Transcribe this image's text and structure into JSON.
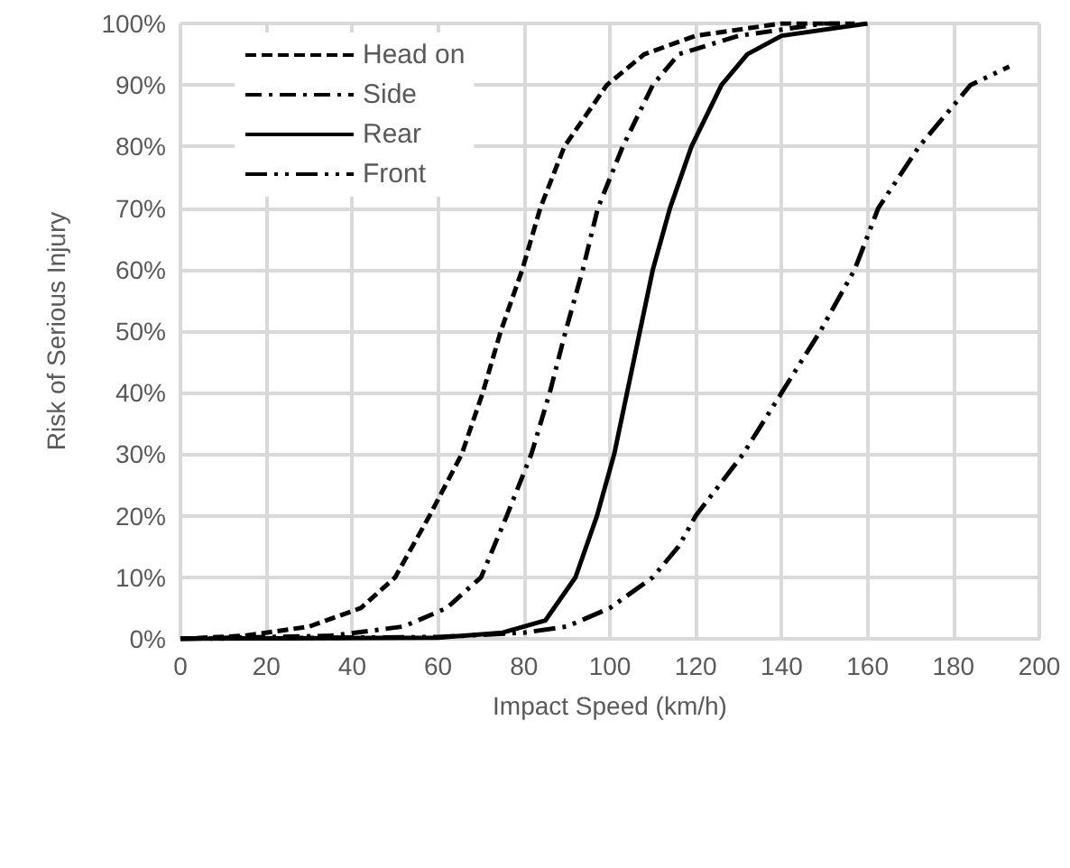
{
  "chart_data": {
    "type": "line",
    "xlabel": "Impact Speed (km/h)",
    "ylabel": "Risk of Serious Injury",
    "xlim": [
      0,
      200
    ],
    "xticks": [
      0,
      20,
      40,
      60,
      80,
      100,
      120,
      140,
      160,
      180,
      200
    ],
    "ylim": [
      0,
      100
    ],
    "yticks": [
      {
        "value": 0,
        "label": "0%"
      },
      {
        "value": 10,
        "label": "10%"
      },
      {
        "value": 20,
        "label": "20%"
      },
      {
        "value": 30,
        "label": "30%"
      },
      {
        "value": 40,
        "label": "40%"
      },
      {
        "value": 50,
        "label": "50%"
      },
      {
        "value": 60,
        "label": "60%"
      },
      {
        "value": 70,
        "label": "70%"
      },
      {
        "value": 80,
        "label": "80%"
      },
      {
        "value": 90,
        "label": "90%"
      },
      {
        "value": 100,
        "label": "100%"
      }
    ],
    "grid": true,
    "legend": "top left",
    "marker": "none",
    "series": [
      {
        "name": "Head on",
        "color": "#000000",
        "line_style": "dashed",
        "x": [
          0,
          15,
          30,
          42,
          50,
          58,
          65.5,
          70.4,
          74.6,
          79.6,
          83.8,
          89.4,
          99.3,
          108,
          120,
          140,
          157
        ],
        "values": [
          0,
          0.5,
          2,
          5,
          10,
          20,
          30,
          40,
          50,
          60,
          70,
          80,
          90,
          95,
          98,
          100,
          100
        ]
      },
      {
        "name": "Side",
        "color": "#000000",
        "line_style": "dashdot",
        "x": [
          0,
          35,
          52,
          62,
          70,
          76,
          81.7,
          86,
          89.7,
          93.7,
          97.2,
          103,
          110,
          116,
          130,
          150,
          155
        ],
        "values": [
          0,
          0.5,
          2,
          5,
          10,
          20,
          30,
          40,
          50,
          60,
          70,
          80,
          90,
          95,
          98,
          100,
          100
        ]
      },
      {
        "name": "Rear",
        "color": "#000000",
        "line_style": "solid",
        "x": [
          0,
          60,
          75,
          85,
          92,
          97,
          101,
          104,
          107,
          110,
          114,
          119,
          126,
          132,
          140,
          160
        ],
        "values": [
          0,
          0.2,
          1,
          3,
          10,
          20,
          30,
          40,
          50,
          60,
          70,
          80,
          90,
          95,
          98,
          100
        ]
      },
      {
        "name": "Front",
        "color": "#000000",
        "line_style": "dashdotdot",
        "x": [
          0,
          60,
          80,
          90,
          100,
          110,
          116,
          120,
          131,
          140,
          149,
          157,
          162.5,
          172,
          184,
          193
        ],
        "values": [
          0,
          0.3,
          1,
          2,
          5,
          10,
          15,
          20,
          30,
          40,
          50,
          60,
          70,
          80,
          90,
          93
        ]
      }
    ]
  }
}
